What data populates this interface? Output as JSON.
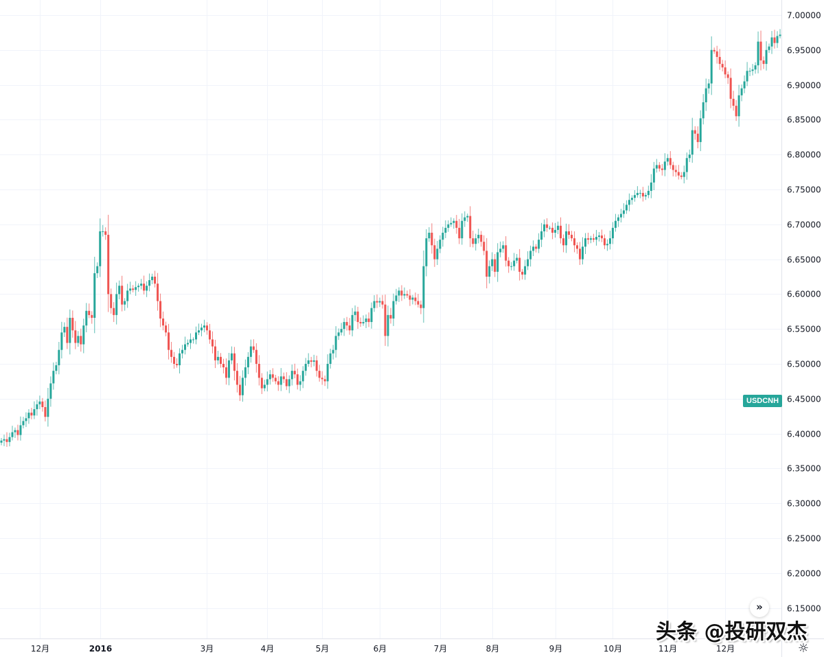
{
  "chart_data": {
    "type": "candlestick",
    "symbol": "USDCNH",
    "ylim": [
      6.15,
      7.0
    ],
    "y_ticks": [
      "7.00000",
      "6.95000",
      "6.90000",
      "6.85000",
      "6.80000",
      "6.75000",
      "6.70000",
      "6.65000",
      "6.60000",
      "6.55000",
      "6.50000",
      "6.45000",
      "6.40000",
      "6.35000",
      "6.30000",
      "6.25000",
      "6.20000",
      "6.15000"
    ],
    "x_ticks": [
      {
        "label": "12月",
        "index": 14,
        "bold": false
      },
      {
        "label": "2016",
        "index": 36,
        "bold": true
      },
      {
        "label": "3月",
        "index": 75,
        "bold": false
      },
      {
        "label": "4月",
        "index": 97,
        "bold": false
      },
      {
        "label": "5月",
        "index": 117,
        "bold": false
      },
      {
        "label": "6月",
        "index": 138,
        "bold": false
      },
      {
        "label": "7月",
        "index": 160,
        "bold": false
      },
      {
        "label": "8月",
        "index": 179,
        "bold": false
      },
      {
        "label": "9月",
        "index": 202,
        "bold": false
      },
      {
        "label": "10月",
        "index": 223,
        "bold": false
      },
      {
        "label": "11月",
        "index": 243,
        "bold": false
      },
      {
        "label": "12月",
        "index": 264,
        "bold": false
      }
    ],
    "grid": true,
    "colors": {
      "up": "#26a69a",
      "down": "#ef5350",
      "grid": "#f0f3fa"
    },
    "close": [
      6.39,
      6.392,
      6.388,
      6.395,
      6.402,
      6.405,
      6.398,
      6.412,
      6.418,
      6.422,
      6.43,
      6.426,
      6.435,
      6.442,
      6.446,
      6.438,
      6.424,
      6.45,
      6.472,
      6.49,
      6.498,
      6.52,
      6.545,
      6.553,
      6.53,
      6.566,
      6.548,
      6.53,
      6.54,
      6.528,
      6.555,
      6.576,
      6.57,
      6.566,
      6.63,
      6.64,
      6.69,
      6.69,
      6.685,
      6.6,
      6.58,
      6.57,
      6.6,
      6.612,
      6.585,
      6.59,
      6.605,
      6.608,
      6.606,
      6.61,
      6.612,
      6.615,
      6.605,
      6.612,
      6.62,
      6.625,
      6.615,
      6.59,
      6.565,
      6.555,
      6.545,
      6.52,
      6.51,
      6.5,
      6.498,
      6.515,
      6.52,
      6.528,
      6.53,
      6.535,
      6.535,
      6.545,
      6.548,
      6.552,
      6.555,
      6.548,
      6.535,
      6.525,
      6.505,
      6.51,
      6.5,
      6.495,
      6.48,
      6.505,
      6.515,
      6.49,
      6.47,
      6.455,
      6.48,
      6.495,
      6.51,
      6.525,
      6.52,
      6.5,
      6.48,
      6.465,
      6.47,
      6.478,
      6.485,
      6.48,
      6.475,
      6.47,
      6.482,
      6.478,
      6.468,
      6.478,
      6.49,
      6.485,
      6.47,
      6.475,
      6.49,
      6.5,
      6.505,
      6.503,
      6.505,
      6.49,
      6.48,
      6.478,
      6.475,
      6.5,
      6.515,
      6.52,
      6.54,
      6.545,
      6.55,
      6.56,
      6.555,
      6.548,
      6.57,
      6.575,
      6.56,
      6.558,
      6.56,
      6.565,
      6.56,
      6.58,
      6.59,
      6.588,
      6.59,
      6.585,
      6.54,
      6.57,
      6.565,
      6.59,
      6.598,
      6.605,
      6.598,
      6.6,
      6.598,
      6.592,
      6.595,
      6.59,
      6.585,
      6.58,
      6.64,
      6.68,
      6.688,
      6.67,
      6.65,
      6.665,
      6.678,
      6.688,
      6.695,
      6.7,
      6.702,
      6.705,
      6.695,
      6.68,
      6.705,
      6.71,
      6.712,
      6.68,
      6.672,
      6.68,
      6.685,
      6.675,
      6.662,
      6.625,
      6.64,
      6.65,
      6.632,
      6.66,
      6.665,
      6.67,
      6.648,
      6.64,
      6.64,
      6.648,
      6.652,
      6.632,
      6.628,
      6.64,
      6.65,
      6.662,
      6.668,
      6.665,
      6.678,
      6.69,
      6.7,
      6.695,
      6.695,
      6.688,
      6.692,
      6.698,
      6.68,
      6.67,
      6.69,
      6.685,
      6.68,
      6.67,
      6.665,
      6.65,
      6.668,
      6.68,
      6.678,
      6.68,
      6.678,
      6.682,
      6.684,
      6.68,
      6.67,
      6.672,
      6.68,
      6.695,
      6.705,
      6.71,
      6.715,
      6.72,
      6.728,
      6.735,
      6.738,
      6.742,
      6.745,
      6.745,
      6.74,
      6.742,
      6.748,
      6.76,
      6.78,
      6.785,
      6.78,
      6.778,
      6.79,
      6.795,
      6.785,
      6.778,
      6.775,
      6.77,
      6.768,
      6.775,
      6.795,
      6.8,
      6.835,
      6.83,
      6.818,
      6.852,
      6.875,
      6.895,
      6.902,
      6.95,
      6.948,
      6.94,
      6.93,
      6.925,
      6.915,
      6.91,
      6.88,
      6.87,
      6.855,
      6.885,
      6.895,
      6.905,
      6.92,
      6.92,
      6.922,
      6.928,
      6.962,
      6.935,
      6.93,
      6.95,
      6.955,
      6.968,
      6.96,
      6.97,
      6.972
    ]
  },
  "ui": {
    "symbol_label": "USDCNH",
    "scroll_button": "»",
    "settings_icon": "gear-icon",
    "watermark": "头条 @投研双杰"
  }
}
